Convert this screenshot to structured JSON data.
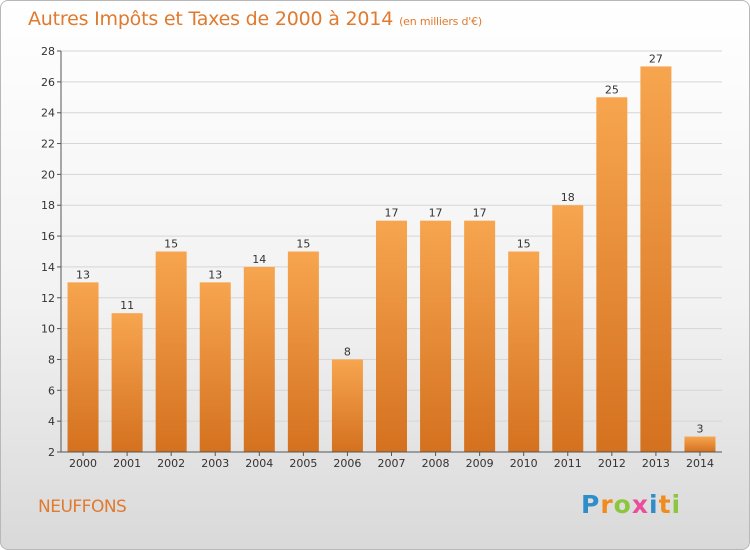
{
  "title": "Autres Impôts et Taxes de 2000 à 2014",
  "subtitle": "(en milliers d'€)",
  "place": "NEUFFONS",
  "logo": {
    "letters": [
      "P",
      "r",
      "o",
      "x",
      "i",
      "t",
      "i"
    ],
    "colors": [
      "#2f8ec9",
      "#f08c1e",
      "#8cc63f",
      "#e84e9a",
      "#2f8ec9",
      "#f08c1e",
      "#8cc63f"
    ]
  },
  "colors": {
    "bar_light": "#f7a54f",
    "bar_dark": "#d4711f",
    "text_accent": "#e07a2e"
  },
  "chart_data": {
    "type": "bar",
    "categories": [
      "2000",
      "2001",
      "2002",
      "2003",
      "2004",
      "2005",
      "2006",
      "2007",
      "2008",
      "2009",
      "2010",
      "2011",
      "2012",
      "2013",
      "2014"
    ],
    "values": [
      13,
      11,
      15,
      13,
      14,
      15,
      8,
      17,
      17,
      17,
      15,
      18,
      25,
      27,
      3
    ],
    "ylim": [
      2,
      28
    ],
    "yticks": [
      2,
      4,
      6,
      8,
      10,
      12,
      14,
      16,
      18,
      20,
      22,
      24,
      26,
      28
    ],
    "grid": true,
    "title": "Autres Impôts et Taxes de 2000 à 2014",
    "subtitle": "(en milliers d'€)"
  }
}
